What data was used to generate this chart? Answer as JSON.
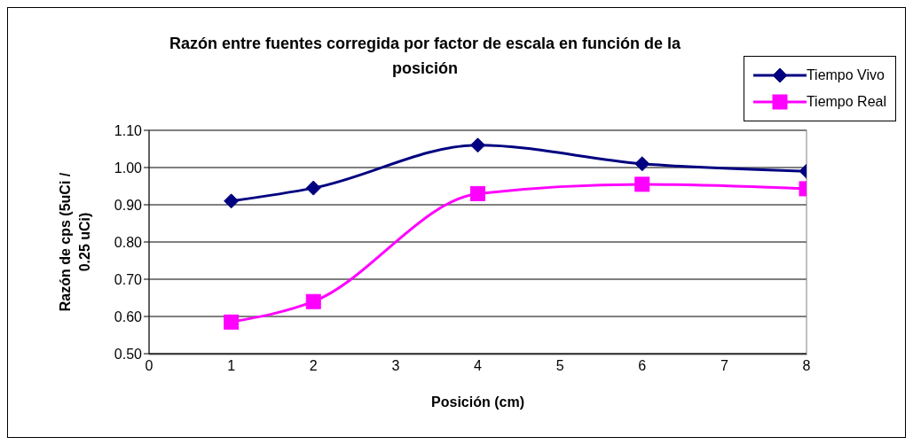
{
  "chart_data": {
    "type": "line",
    "title": "Razón entre fuentes corregida por factor de escala en función de la posición",
    "xlabel": "Posición (cm)",
    "ylabel": "Razón de cps (5uCi / 0.25 uCi)",
    "x": [
      1,
      2,
      4,
      6,
      8
    ],
    "xlim": [
      0,
      8
    ],
    "xticks": [
      0,
      1,
      2,
      3,
      4,
      5,
      6,
      7,
      8
    ],
    "ylim": [
      0.5,
      1.1
    ],
    "yticks": [
      {
        "value": 0.5,
        "label": "0.50"
      },
      {
        "value": 0.6,
        "label": "0.60"
      },
      {
        "value": 0.7,
        "label": "0.70"
      },
      {
        "value": 0.8,
        "label": "0.80"
      },
      {
        "value": 0.9,
        "label": "0.90"
      },
      {
        "value": 1.0,
        "label": "1.00"
      },
      {
        "value": 1.1,
        "label": "1.10"
      }
    ],
    "grid": "y",
    "legend": "top right",
    "line_style": "solid",
    "series": [
      {
        "name": "Tiempo Vivo",
        "color": "#000080",
        "marker": "diamond",
        "values": [
          0.91,
          0.945,
          1.06,
          1.01,
          0.99
        ]
      },
      {
        "name": "Tiempo Real",
        "color": "#ff00ff",
        "marker": "square",
        "values": [
          0.585,
          0.64,
          0.93,
          0.955,
          0.943
        ]
      }
    ]
  }
}
